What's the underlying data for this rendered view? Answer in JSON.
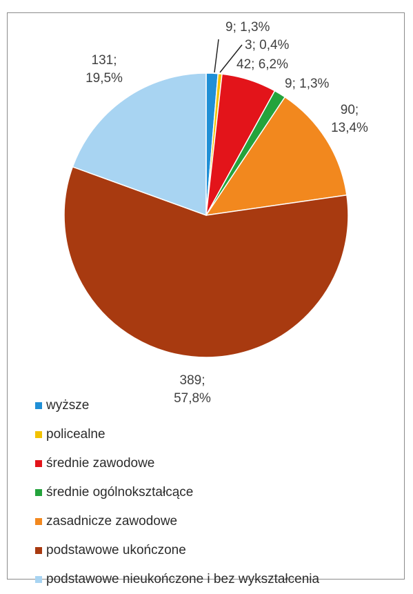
{
  "chart_data": {
    "type": "pie",
    "title": "",
    "legend_position": "bottom-left",
    "slices": [
      {
        "name": "wyższe",
        "value": 9,
        "percent": "1,3%",
        "color": "#1f8fd6"
      },
      {
        "name": "policealne",
        "value": 3,
        "percent": "0,4%",
        "color": "#f2c200"
      },
      {
        "name": "średnie zawodowe",
        "value": 42,
        "percent": "6,2%",
        "color": "#e3141a"
      },
      {
        "name": "średnie ogólnokształcące",
        "value": 9,
        "percent": "1,3%",
        "color": "#24a33c"
      },
      {
        "name": "zasadnicze zawodowe",
        "value": 90,
        "percent": "13,4%",
        "color": "#f2881e"
      },
      {
        "name": "podstawowe ukończone",
        "value": 389,
        "percent": "57,8%",
        "color": "#a83a10"
      },
      {
        "name": "podstawowe nieukończone i bez wykształcenia",
        "value": 131,
        "percent": "19,5%",
        "color": "#a8d4f2"
      }
    ],
    "data_labels": [
      {
        "line1": "9; 1,3%",
        "line2": ""
      },
      {
        "line1": "3; 0,4%",
        "line2": ""
      },
      {
        "line1": "42; 6,2%",
        "line2": ""
      },
      {
        "line1": "9; 1,3%",
        "line2": ""
      },
      {
        "line1": "90;",
        "line2": "13,4%"
      },
      {
        "line1": "389;",
        "line2": "57,8%"
      },
      {
        "line1": "131;",
        "line2": "19,5%"
      }
    ]
  }
}
